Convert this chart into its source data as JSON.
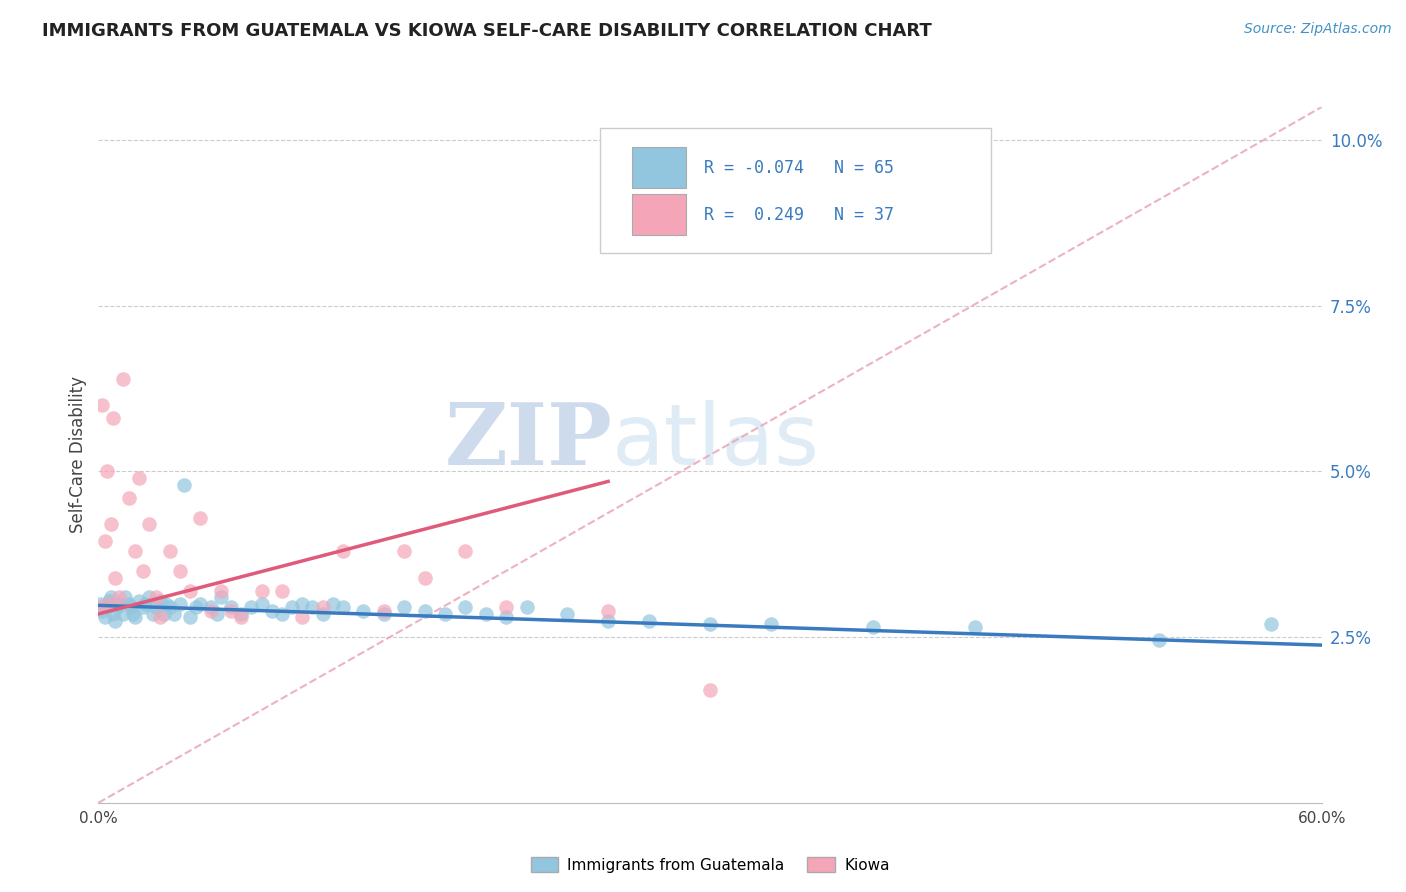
{
  "title": "IMMIGRANTS FROM GUATEMALA VS KIOWA SELF-CARE DISABILITY CORRELATION CHART",
  "source_text": "Source: ZipAtlas.com",
  "ylabel": "Self-Care Disability",
  "xlim": [
    0.0,
    0.6
  ],
  "ylim": [
    0.0,
    0.105
  ],
  "yticks_right": [
    0.025,
    0.05,
    0.075,
    0.1
  ],
  "yticklabels_right": [
    "2.5%",
    "5.0%",
    "7.5%",
    "10.0%"
  ],
  "legend_r1": "R = -0.074",
  "legend_n1": "N = 65",
  "legend_r2": "R =  0.249",
  "legend_n2": "N = 37",
  "color_blue": "#92c5de",
  "color_pink": "#f4a6b8",
  "color_blue_line": "#3a7bbf",
  "color_pink_line": "#e05a7a",
  "color_diag_line": "#e8a0b0",
  "watermark_zip": "ZIP",
  "watermark_atlas": "atlas",
  "legend_label1": "Immigrants from Guatemala",
  "legend_label2": "Kiowa",
  "blue_line_x": [
    0.0,
    0.6
  ],
  "blue_line_y": [
    0.0298,
    0.0238
  ],
  "pink_line_x": [
    0.0,
    0.25
  ],
  "pink_line_y": [
    0.0285,
    0.0485
  ],
  "diag_line_x": [
    0.0,
    0.6
  ],
  "diag_line_y": [
    0.0,
    0.105
  ],
  "blue_scatter_x": [
    0.001,
    0.002,
    0.003,
    0.004,
    0.005,
    0.006,
    0.007,
    0.008,
    0.009,
    0.01,
    0.012,
    0.013,
    0.015,
    0.016,
    0.017,
    0.018,
    0.02,
    0.022,
    0.023,
    0.025,
    0.027,
    0.028,
    0.03,
    0.032,
    0.033,
    0.035,
    0.037,
    0.04,
    0.042,
    0.045,
    0.048,
    0.05,
    0.055,
    0.058,
    0.06,
    0.065,
    0.07,
    0.075,
    0.08,
    0.085,
    0.09,
    0.095,
    0.1,
    0.105,
    0.11,
    0.115,
    0.12,
    0.13,
    0.14,
    0.15,
    0.16,
    0.17,
    0.18,
    0.19,
    0.2,
    0.21,
    0.23,
    0.25,
    0.27,
    0.3,
    0.33,
    0.38,
    0.43,
    0.52,
    0.575
  ],
  "blue_scatter_y": [
    0.03,
    0.029,
    0.028,
    0.0295,
    0.0305,
    0.031,
    0.0285,
    0.0275,
    0.0295,
    0.03,
    0.0285,
    0.031,
    0.03,
    0.0295,
    0.0285,
    0.028,
    0.0305,
    0.0295,
    0.03,
    0.031,
    0.0285,
    0.0295,
    0.0305,
    0.0285,
    0.03,
    0.0295,
    0.0285,
    0.03,
    0.048,
    0.028,
    0.0295,
    0.03,
    0.0295,
    0.0285,
    0.031,
    0.0295,
    0.0285,
    0.0295,
    0.03,
    0.029,
    0.0285,
    0.0295,
    0.03,
    0.0295,
    0.0285,
    0.03,
    0.0295,
    0.029,
    0.0285,
    0.0295,
    0.029,
    0.0285,
    0.0295,
    0.0285,
    0.028,
    0.0295,
    0.0285,
    0.0275,
    0.0275,
    0.027,
    0.027,
    0.0265,
    0.0265,
    0.0245,
    0.027
  ],
  "pink_scatter_x": [
    0.001,
    0.002,
    0.003,
    0.004,
    0.005,
    0.006,
    0.007,
    0.008,
    0.01,
    0.012,
    0.015,
    0.018,
    0.02,
    0.022,
    0.025,
    0.028,
    0.03,
    0.035,
    0.04,
    0.045,
    0.05,
    0.055,
    0.06,
    0.065,
    0.07,
    0.08,
    0.09,
    0.1,
    0.11,
    0.12,
    0.14,
    0.15,
    0.16,
    0.18,
    0.2,
    0.25,
    0.3
  ],
  "pink_scatter_y": [
    0.0295,
    0.06,
    0.0395,
    0.05,
    0.03,
    0.042,
    0.058,
    0.034,
    0.031,
    0.064,
    0.046,
    0.038,
    0.049,
    0.035,
    0.042,
    0.031,
    0.028,
    0.038,
    0.035,
    0.032,
    0.043,
    0.029,
    0.032,
    0.029,
    0.028,
    0.032,
    0.032,
    0.028,
    0.0295,
    0.038,
    0.029,
    0.038,
    0.034,
    0.038,
    0.0295,
    0.029,
    0.017
  ]
}
